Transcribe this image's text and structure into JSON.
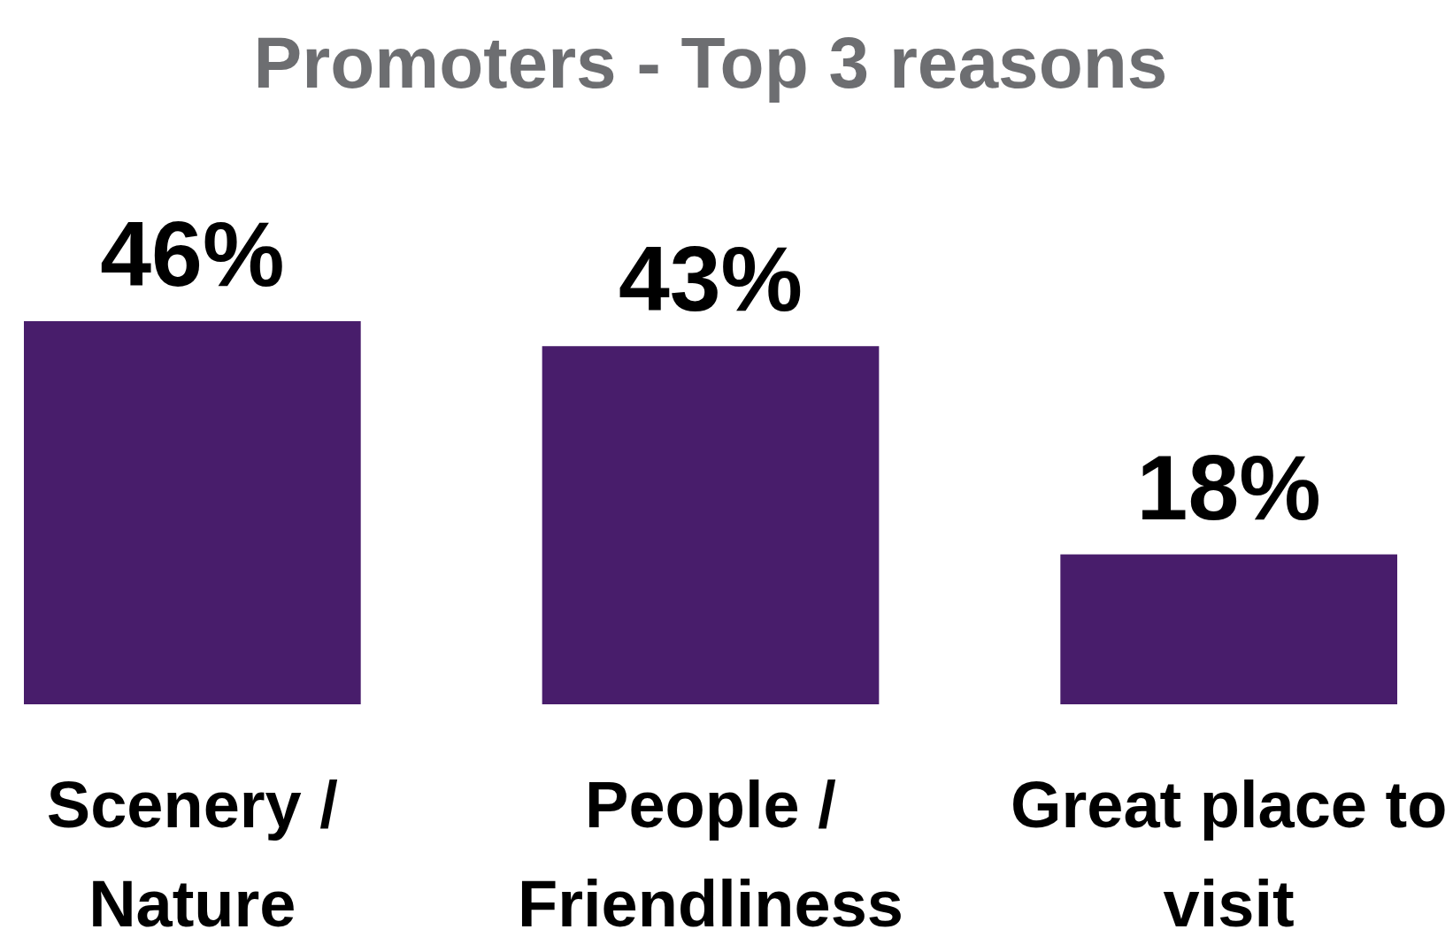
{
  "chart_data": {
    "type": "bar",
    "title": "Promoters - Top 3 reasons",
    "categories": [
      "Scenery / Nature",
      "People / Friendliness",
      "Great place to visit"
    ],
    "values": [
      46,
      43,
      18
    ],
    "value_labels": [
      "46%",
      "43%",
      "18%"
    ],
    "color": "#481d6b"
  }
}
